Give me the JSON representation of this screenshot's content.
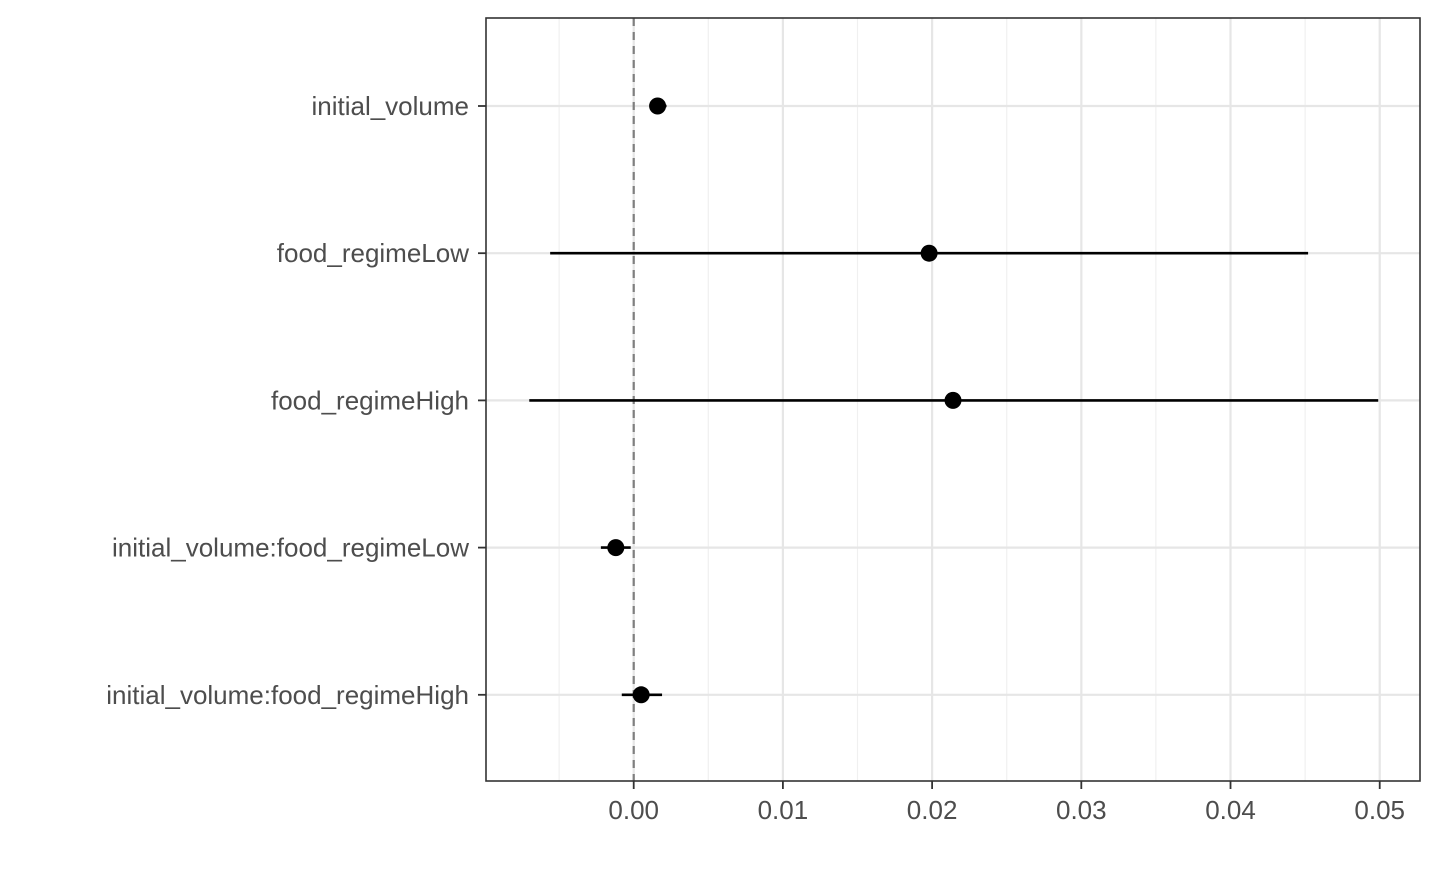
{
  "chart_data": {
    "type": "scatter",
    "subtype": "coefficient-plot",
    "title": "",
    "xlabel": "",
    "ylabel": "",
    "xlim": [
      -0.0099,
      0.0527
    ],
    "x_ticks": [
      0.0,
      0.01,
      0.02,
      0.03,
      0.04,
      0.05
    ],
    "x_tick_labels": [
      "0.00",
      "0.01",
      "0.02",
      "0.03",
      "0.04",
      "0.05"
    ],
    "reference_line": 0,
    "grid": true,
    "legend": "none",
    "terms": [
      {
        "label": "initial_volume",
        "estimate": 0.0016,
        "lower": 0.0011,
        "upper": 0.0022
      },
      {
        "label": "food_regimeLow",
        "estimate": 0.0198,
        "lower": -0.0056,
        "upper": 0.0452
      },
      {
        "label": "food_regimeHigh",
        "estimate": 0.0214,
        "lower": -0.007,
        "upper": 0.0499
      },
      {
        "label": "initial_volume:food_regimeLow",
        "estimate": -0.0012,
        "lower": -0.0022,
        "upper": -0.0002
      },
      {
        "label": "initial_volume:food_regimeHigh",
        "estimate": 0.0005,
        "lower": -0.0008,
        "upper": 0.0019
      }
    ]
  }
}
